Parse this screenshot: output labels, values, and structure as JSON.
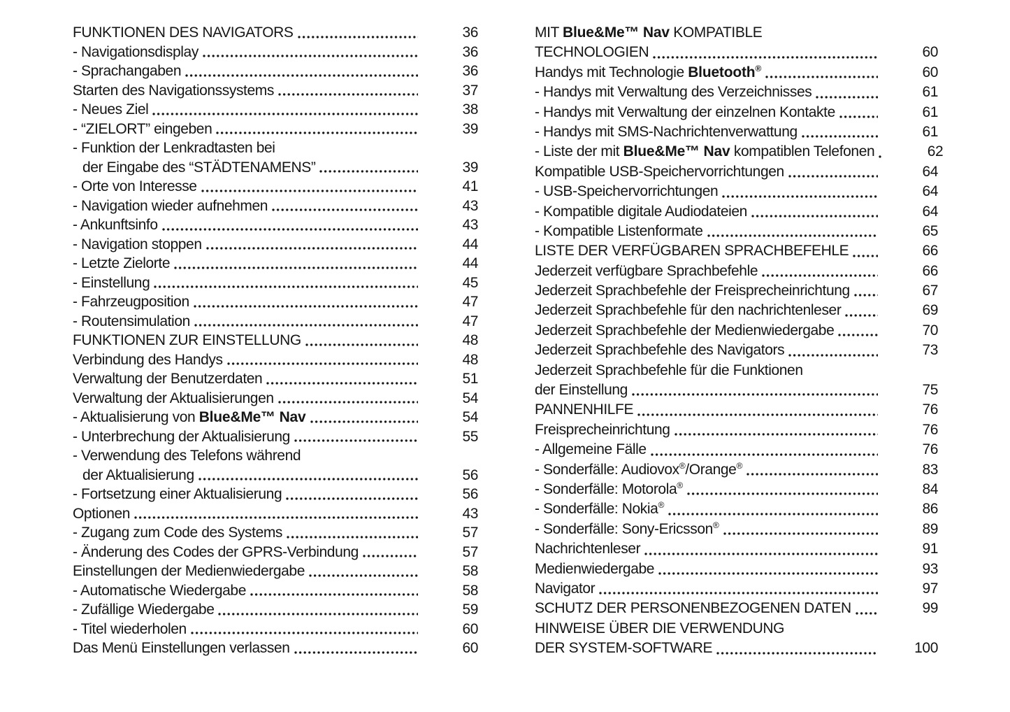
{
  "colors": {
    "background": "#ffffff",
    "text": "#151515"
  },
  "toc": {
    "left_column": {
      "rows": [
        {
          "segs": [
            {
              "t": "FUNKTIONEN DES NAVIGATORS"
            }
          ],
          "page": "36"
        },
        {
          "segs": [
            {
              "t": "- Navigationsdisplay"
            }
          ],
          "page": "36"
        },
        {
          "segs": [
            {
              "t": "- Sprachangaben"
            }
          ],
          "page": "36"
        },
        {
          "segs": [
            {
              "t": "Starten des Navigationssystems"
            }
          ],
          "page": "37"
        },
        {
          "segs": [
            {
              "t": "- Neues Ziel"
            }
          ],
          "page": "38"
        },
        {
          "segs": [
            {
              "t": "- “ZIELORT” eingeben"
            }
          ],
          "page": "39"
        },
        {
          "segs": [
            {
              "t": "- Funktion der Lenkradtasten bei"
            }
          ],
          "page": null
        },
        {
          "segs": [
            {
              "t": "der Eingabe des “STÄDTENAMENS”"
            }
          ],
          "page": "39",
          "indent": true
        },
        {
          "segs": [
            {
              "t": "- Orte von Interesse"
            }
          ],
          "page": "41"
        },
        {
          "segs": [
            {
              "t": "- Navigation wieder aufnehmen"
            }
          ],
          "page": "43"
        },
        {
          "segs": [
            {
              "t": "- Ankunftsinfo"
            }
          ],
          "page": "43"
        },
        {
          "segs": [
            {
              "t": "- Navigation stoppen"
            }
          ],
          "page": "44"
        },
        {
          "segs": [
            {
              "t": "- Letzte Zielorte"
            }
          ],
          "page": "44"
        },
        {
          "segs": [
            {
              "t": "- Einstellung"
            }
          ],
          "page": "45"
        },
        {
          "segs": [
            {
              "t": "- Fahrzeugposition"
            }
          ],
          "page": "47"
        },
        {
          "segs": [
            {
              "t": "- Routensimulation"
            }
          ],
          "page": "47"
        },
        {
          "segs": [
            {
              "t": "FUNKTIONEN ZUR EINSTELLUNG"
            }
          ],
          "page": "48"
        },
        {
          "segs": [
            {
              "t": "Verbindung des Handys"
            }
          ],
          "page": "48"
        },
        {
          "segs": [
            {
              "t": "Verwaltung der Benutzerdaten"
            }
          ],
          "page": "51"
        },
        {
          "segs": [
            {
              "t": "Verwaltung der Aktualisierungen"
            }
          ],
          "page": "54"
        },
        {
          "segs": [
            {
              "t": "- Aktualisierung von "
            },
            {
              "t": "Blue&Me™ Nav",
              "b": true
            }
          ],
          "page": "54"
        },
        {
          "segs": [
            {
              "t": "- Unterbrechung der Aktualisierung"
            }
          ],
          "page": "55"
        },
        {
          "segs": [
            {
              "t": "- Verwendung des Telefons während"
            }
          ],
          "page": null
        },
        {
          "segs": [
            {
              "t": "der Aktualisierung"
            }
          ],
          "page": "56",
          "indent": true
        },
        {
          "segs": [
            {
              "t": "- Fortsetzung einer Aktualisierung"
            }
          ],
          "page": "56"
        },
        {
          "segs": [
            {
              "t": "Optionen"
            }
          ],
          "page": "43"
        },
        {
          "segs": [
            {
              "t": "- Zugang zum Code des Systems"
            }
          ],
          "page": "57"
        },
        {
          "segs": [
            {
              "t": "- Änderung des Codes der GPRS-Verbindung"
            }
          ],
          "page": "57"
        },
        {
          "segs": [
            {
              "t": "Einstellungen der Medienwiedergabe"
            }
          ],
          "page": "58"
        },
        {
          "segs": [
            {
              "t": "- Automatische Wiedergabe"
            }
          ],
          "page": "58"
        },
        {
          "segs": [
            {
              "t": "- Zufällige Wiedergabe"
            }
          ],
          "page": "59"
        },
        {
          "segs": [
            {
              "t": "- Titel wiederholen"
            }
          ],
          "page": "60"
        },
        {
          "segs": [
            {
              "t": "Das Menü Einstellungen verlassen"
            }
          ],
          "page": "60"
        }
      ]
    },
    "right_column": {
      "rows": [
        {
          "segs": [
            {
              "t": "MIT "
            },
            {
              "t": "Blue&Me™ Nav",
              "b": true
            },
            {
              "t": " KOMPATIBLE"
            }
          ],
          "page": null
        },
        {
          "segs": [
            {
              "t": "TECHNOLOGIEN"
            }
          ],
          "page": "60"
        },
        {
          "segs": [
            {
              "t": "Handys mit Technologie "
            },
            {
              "t": "Bluetooth",
              "b": true
            },
            {
              "t": "®",
              "b": true,
              "sup": true
            }
          ],
          "page": "60"
        },
        {
          "segs": [
            {
              "t": "- Handys mit Verwaltung des Verzeichnisses"
            }
          ],
          "page": "61"
        },
        {
          "segs": [
            {
              "t": "- Handys mit Verwaltung der einzelnen Kontakte"
            }
          ],
          "page": "61"
        },
        {
          "segs": [
            {
              "t": "- Handys mit SMS-Nachrichtenverwattung"
            }
          ],
          "page": "61"
        },
        {
          "segs": [
            {
              "t": "- Liste der mit "
            },
            {
              "t": "Blue&Me™ Nav",
              "b": true
            },
            {
              "t": " kompatiblen Telefonen"
            }
          ],
          "page": "62"
        },
        {
          "segs": [
            {
              "t": "Kompatible USB-Speichervorrichtungen"
            }
          ],
          "page": "64"
        },
        {
          "segs": [
            {
              "t": "- USB-Speichervorrichtungen"
            }
          ],
          "page": "64"
        },
        {
          "segs": [
            {
              "t": "- Kompatible digitale Audiodateien"
            }
          ],
          "page": "64"
        },
        {
          "segs": [
            {
              "t": "- Kompatible Listenformate"
            }
          ],
          "page": "65"
        },
        {
          "segs": [
            {
              "t": "LISTE DER VERFÜGBAREN SPRACHBEFEHLE"
            }
          ],
          "page": "66"
        },
        {
          "segs": [
            {
              "t": "Jederzeit verfügbare Sprachbefehle"
            }
          ],
          "page": "66"
        },
        {
          "segs": [
            {
              "t": "Jederzeit Sprachbefehle der Freisprecheinrichtung"
            }
          ],
          "page": "67"
        },
        {
          "segs": [
            {
              "t": "Jederzeit Sprachbefehle für den nachrichtenleser"
            }
          ],
          "page": "69"
        },
        {
          "segs": [
            {
              "t": "Jederzeit Sprachbefehle der Medienwiedergabe"
            }
          ],
          "page": "70"
        },
        {
          "segs": [
            {
              "t": "Jederzeit Sprachbefehle des Navigators"
            }
          ],
          "page": "73"
        },
        {
          "segs": [
            {
              "t": "Jederzeit Sprachbefehle für die Funktionen"
            }
          ],
          "page": null
        },
        {
          "segs": [
            {
              "t": "der Einstellung"
            }
          ],
          "page": "75"
        },
        {
          "segs": [
            {
              "t": "PANNENHILFE"
            }
          ],
          "page": "76"
        },
        {
          "segs": [
            {
              "t": "Freisprecheinrichtung"
            }
          ],
          "page": "76"
        },
        {
          "segs": [
            {
              "t": "- Allgemeine Fälle"
            }
          ],
          "page": "76"
        },
        {
          "segs": [
            {
              "t": "- Sonderfälle: Audiovox"
            },
            {
              "t": "®",
              "sup": true
            },
            {
              "t": "/Orange"
            },
            {
              "t": "®",
              "sup": true
            }
          ],
          "page": "83"
        },
        {
          "segs": [
            {
              "t": "- Sonderfälle: Motorola"
            },
            {
              "t": "®",
              "sup": true
            }
          ],
          "page": "84"
        },
        {
          "segs": [
            {
              "t": "- Sonderfälle: Nokia"
            },
            {
              "t": "®",
              "sup": true
            }
          ],
          "page": "86"
        },
        {
          "segs": [
            {
              "t": "- Sonderfälle: Sony-Ericsson"
            },
            {
              "t": "®",
              "sup": true
            }
          ],
          "page": "89"
        },
        {
          "segs": [
            {
              "t": "Nachrichtenleser"
            }
          ],
          "page": "91"
        },
        {
          "segs": [
            {
              "t": "Medienwiedergabe"
            }
          ],
          "page": "93"
        },
        {
          "segs": [
            {
              "t": "Navigator"
            }
          ],
          "page": "97"
        },
        {
          "segs": [
            {
              "t": "SCHUTZ DER PERSONENBEZOGENEN DATEN"
            }
          ],
          "page": "99"
        },
        {
          "segs": [
            {
              "t": "HINWEISE ÜBER DIE VERWENDUNG"
            }
          ],
          "page": null
        },
        {
          "segs": [
            {
              "t": "DER SYSTEM-SOFTWARE"
            }
          ],
          "page": "100"
        }
      ]
    }
  }
}
